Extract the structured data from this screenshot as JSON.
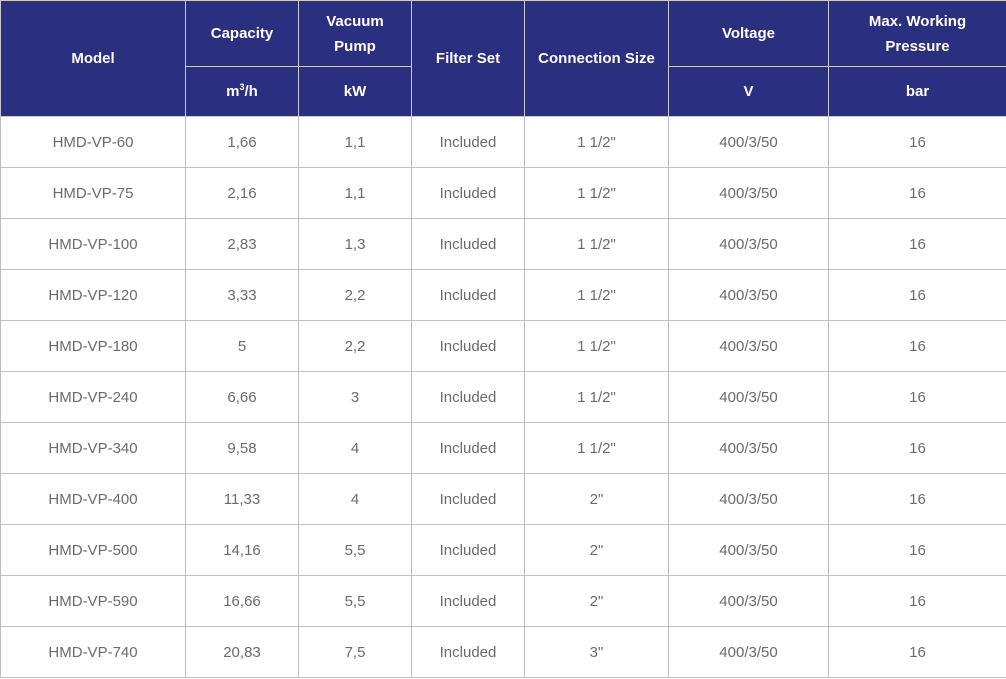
{
  "headers": {
    "model": "Model",
    "capacity": "Capacity",
    "vacuum_pump": [
      "Vacuum",
      "Pump"
    ],
    "filter_set": "Filter Set",
    "connection_size": "Connection Size",
    "voltage": "Voltage",
    "max_pressure": [
      "Max. Working",
      "Pressure"
    ]
  },
  "units": {
    "capacity_base": "m",
    "capacity_sup": "3",
    "capacity_rest": "/h",
    "vacuum_pump": "kW",
    "voltage": "V",
    "max_pressure": "bar"
  },
  "rows": [
    [
      "HMD-VP-60",
      "1,66",
      "1,1",
      "Included",
      "1 1/2\"",
      "400/3/50",
      "16"
    ],
    [
      "HMD-VP-75",
      "2,16",
      "1,1",
      "Included",
      "1 1/2\"",
      "400/3/50",
      "16"
    ],
    [
      "HMD-VP-100",
      "2,83",
      "1,3",
      "Included",
      "1 1/2\"",
      "400/3/50",
      "16"
    ],
    [
      "HMD-VP-120",
      "3,33",
      "2,2",
      "Included",
      "1 1/2\"",
      "400/3/50",
      "16"
    ],
    [
      "HMD-VP-180",
      "5",
      "2,2",
      "Included",
      "1 1/2\"",
      "400/3/50",
      "16"
    ],
    [
      "HMD-VP-240",
      "6,66",
      "3",
      "Included",
      "1 1/2\"",
      "400/3/50",
      "16"
    ],
    [
      "HMD-VP-340",
      "9,58",
      "4",
      "Included",
      "1 1/2\"",
      "400/3/50",
      "16"
    ],
    [
      "HMD-VP-400",
      "11,33",
      "4",
      "Included",
      "2\"",
      "400/3/50",
      "16"
    ],
    [
      "HMD-VP-500",
      "14,16",
      "5,5",
      "Included",
      "2\"",
      "400/3/50",
      "16"
    ],
    [
      "HMD-VP-590",
      "16,66",
      "5,5",
      "Included",
      "2\"",
      "400/3/50",
      "16"
    ],
    [
      "HMD-VP-740",
      "20,83",
      "7,5",
      "Included",
      "3\"",
      "400/3/50",
      "16"
    ]
  ],
  "colors": {
    "header_bg": "#2b2f7f",
    "header_text": "#ffffff",
    "cell_text": "#6b6b6b",
    "grid": "#bfbfbf"
  }
}
